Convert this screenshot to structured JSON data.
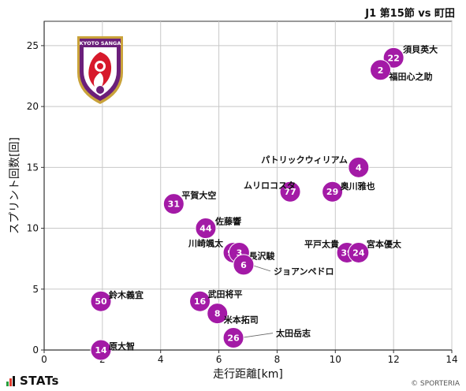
{
  "header": {
    "match_title": "J1 第15節 vs 町田"
  },
  "footer": {
    "brand": "STATs",
    "copyright": "© SPORTERIA"
  },
  "logo": {
    "text": "KYOTO SANGA",
    "colors": {
      "shield": "#6b1f7a",
      "emblem": "#d7192b",
      "gold": "#c9a23a"
    }
  },
  "colors": {
    "marker": "#a31aa6",
    "marker_label": "#ffffff",
    "grid": "#c8c8c8",
    "axis": "#333333"
  },
  "chart_data": {
    "type": "scatter",
    "title": "",
    "xlabel": "走行距離[km]",
    "ylabel": "スプリント回数[回]",
    "xlim": [
      0,
      14
    ],
    "ylim": [
      0,
      27
    ],
    "xticks": [
      0,
      2,
      4,
      6,
      8,
      10,
      12,
      14
    ],
    "yticks": [
      0,
      5,
      10,
      15,
      20,
      25
    ],
    "grid": true,
    "points": [
      {
        "num": "22",
        "name": "須貝英大",
        "x": 12.0,
        "y": 24
      },
      {
        "num": "2",
        "name": "福田心之助",
        "x": 11.55,
        "y": 23
      },
      {
        "num": "4",
        "name": "パトリックウィリアム",
        "x": 10.8,
        "y": 15
      },
      {
        "num": "77",
        "name": "ムリロコスタ",
        "x": 8.45,
        "y": 13
      },
      {
        "num": "29",
        "name": "奥川雅也",
        "x": 9.9,
        "y": 13
      },
      {
        "num": "31",
        "name": "平賀大空",
        "x": 4.45,
        "y": 12
      },
      {
        "num": "44",
        "name": "佐藤響",
        "x": 5.55,
        "y": 10
      },
      {
        "num": "97",
        "name": "川崎颯太",
        "x": 6.5,
        "y": 8
      },
      {
        "num": "3",
        "name": "長沢駿",
        "x": 6.7,
        "y": 8
      },
      {
        "num": "6",
        "name": "ジョアンペドロ",
        "x": 6.85,
        "y": 7
      },
      {
        "num": "39",
        "name": "平戸太貴",
        "x": 10.4,
        "y": 8
      },
      {
        "num": "24",
        "name": "宮本優太",
        "x": 10.8,
        "y": 8
      },
      {
        "num": "50",
        "name": "鈴木義宜",
        "x": 1.95,
        "y": 4
      },
      {
        "num": "16",
        "name": "武田将平",
        "x": 5.35,
        "y": 4
      },
      {
        "num": "8",
        "name": "米本拓司",
        "x": 5.95,
        "y": 3
      },
      {
        "num": "26",
        "name": "太田岳志",
        "x": 6.5,
        "y": 1
      },
      {
        "num": "14",
        "name": "原大智",
        "x": 1.95,
        "y": 0
      }
    ]
  }
}
